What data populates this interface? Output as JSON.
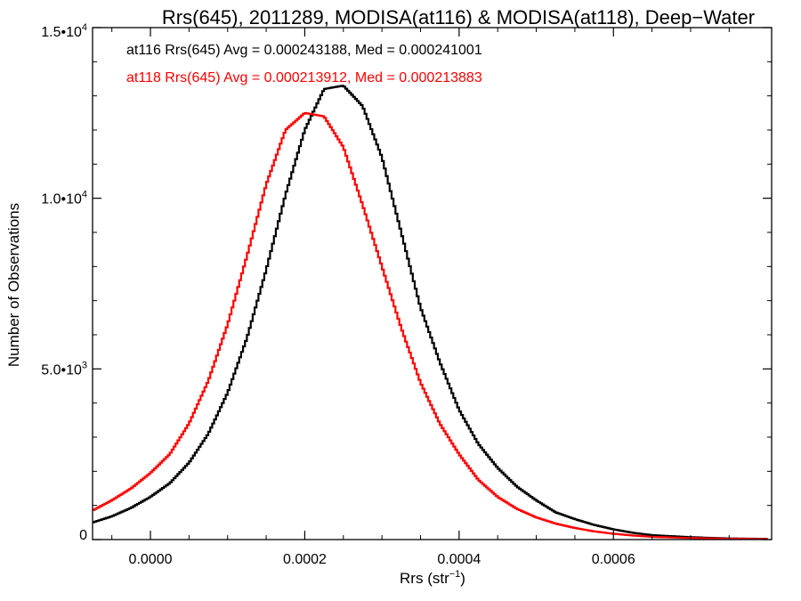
{
  "chart_data": {
    "type": "line",
    "title": "Rrs(645), 2011289, MODISA(at116) & MODISA(at118), Deep−Water",
    "xlabel": "Rrs (str",
    "xlabel_sup": "−1",
    "xlabel_close": ")",
    "ylabel": "Number of Observations",
    "xlim": [
      -7.5e-05,
      0.000805
    ],
    "ylim": [
      0,
      15000
    ],
    "grid": false,
    "x_ticks": [
      {
        "value": 0.0,
        "label": "0.0000"
      },
      {
        "value": 0.0002,
        "label": "0.0002"
      },
      {
        "value": 0.0004,
        "label": "0.0004"
      },
      {
        "value": 0.0006,
        "label": "0.0006"
      }
    ],
    "y_ticks": [
      {
        "value": 0,
        "mant": "0",
        "exp": ""
      },
      {
        "value": 5000,
        "mant": "5.0•10",
        "exp": "3"
      },
      {
        "value": 10000,
        "mant": "1.0•10",
        "exp": "4"
      },
      {
        "value": 15000,
        "mant": "1.5•10",
        "exp": "4"
      }
    ],
    "annotations": [
      {
        "text": "at116 Rrs(645) Avg = 0.000243188, Med = 0.000241001",
        "color": "#000000"
      },
      {
        "text": "at118 Rrs(645) Avg = 0.000213912, Med = 0.000213883",
        "color": "#ff0000"
      }
    ],
    "series": [
      {
        "color": "#000000",
        "x": [
          -7.5e-05,
          -5e-05,
          -2.5e-05,
          0.0,
          2.5e-05,
          5e-05,
          7.5e-05,
          0.0001,
          0.000125,
          0.00015,
          0.000175,
          0.0002,
          0.000225,
          0.00025,
          0.000275,
          0.0003,
          0.000325,
          0.00035,
          0.000375,
          0.0004,
          0.000425,
          0.00045,
          0.000475,
          0.0005,
          0.000525,
          0.00055,
          0.000575,
          0.0006,
          0.000625,
          0.00065,
          0.0007,
          0.00075,
          0.0008
        ],
        "values": [
          500,
          680,
          930,
          1250,
          1650,
          2250,
          3100,
          4300,
          5900,
          7900,
          10100,
          12000,
          13200,
          13300,
          12700,
          11200,
          9000,
          6800,
          5200,
          3800,
          2800,
          2100,
          1550,
          1150,
          800,
          600,
          430,
          300,
          200,
          130,
          70,
          35,
          20
        ]
      },
      {
        "color": "#ff0000",
        "x": [
          -7.5e-05,
          -5e-05,
          -2.5e-05,
          0.0,
          2.5e-05,
          5e-05,
          7.5e-05,
          0.0001,
          0.000125,
          0.00015,
          0.000175,
          0.0002,
          0.000225,
          0.00025,
          0.000275,
          0.0003,
          0.000325,
          0.00035,
          0.000375,
          0.0004,
          0.000425,
          0.00045,
          0.000475,
          0.0005,
          0.000525,
          0.00055,
          0.000575,
          0.0006,
          0.000625,
          0.00065,
          0.0007,
          0.00075,
          0.0008
        ],
        "values": [
          850,
          1150,
          1500,
          1950,
          2500,
          3400,
          4650,
          6300,
          8300,
          10400,
          12000,
          12500,
          12400,
          11500,
          9800,
          8000,
          6200,
          4600,
          3400,
          2500,
          1750,
          1250,
          900,
          650,
          470,
          340,
          240,
          170,
          120,
          80,
          45,
          25,
          15
        ]
      }
    ]
  }
}
